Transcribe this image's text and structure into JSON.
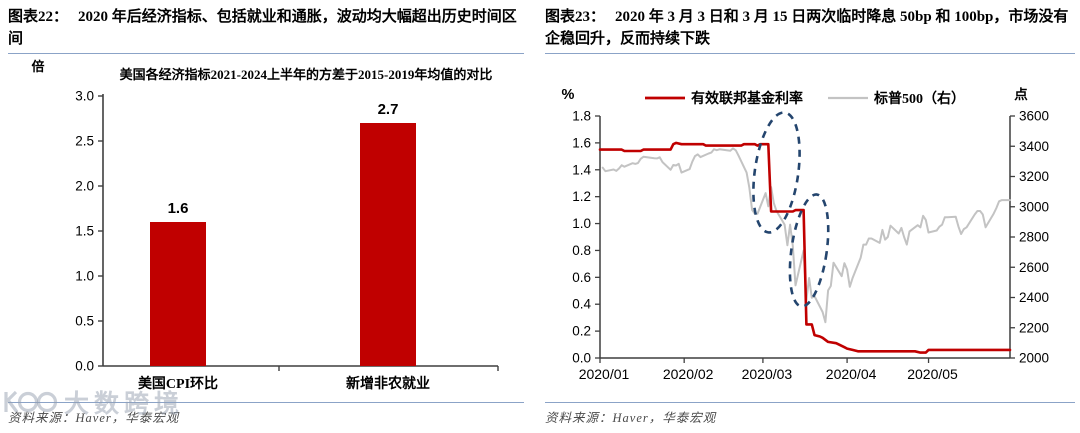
{
  "page": {
    "background": "#ffffff",
    "accent_red": "#c00000",
    "gray_line": "#c3c3c3",
    "ellipse_navy": "#24456e",
    "divider_blue": "#8ba3c7"
  },
  "watermark": {
    "logo": "double-circle-logo",
    "text": "大数跨境"
  },
  "left_panel": {
    "title_label": "图表22：",
    "title": "2020 年后经济指标、包括就业和通胀，波动均大幅超出历史时间区间",
    "source": "资料来源：Haver，华泰宏观"
  },
  "right_panel": {
    "title_label": "图表23：",
    "title": "2020 年 3 月 3 日和 3 月 15 日两次临时降息 50bp 和 100bp，市场没有企稳回升，反而持续下跌",
    "source": "资料来源：Haver，华泰宏观"
  },
  "chart_data": [
    {
      "type": "bar",
      "title": "美国各经济指标2021-2024上半年的方差于2015-2019年均值的对比",
      "unit": "倍",
      "categories": [
        "美国CPI环比",
        "新增非农就业"
      ],
      "values": [
        1.6,
        2.7
      ],
      "bar_labels": [
        "1.6",
        "2.7"
      ],
      "ylim": [
        0,
        3.0
      ],
      "yticks": [
        0.0,
        0.5,
        1.0,
        1.5,
        2.0,
        2.5,
        3.0
      ],
      "bar_color": "#c00000",
      "grid": false
    },
    {
      "type": "line",
      "left_axis": {
        "unit": "%",
        "ylim": [
          0,
          1.8
        ],
        "ticks": [
          0.0,
          0.2,
          0.4,
          0.6,
          0.8,
          1.0,
          1.2,
          1.4,
          1.6,
          1.8
        ]
      },
      "right_axis": {
        "unit": "点",
        "ylim": [
          2000,
          3600
        ],
        "ticks": [
          2000,
          2200,
          2400,
          2600,
          2800,
          3000,
          3200,
          3400,
          3600
        ]
      },
      "x_range_days": 151,
      "x_ticks": [
        {
          "day": 0,
          "label": "2020/01"
        },
        {
          "day": 31,
          "label": "2020/02"
        },
        {
          "day": 60,
          "label": "2020/03"
        },
        {
          "day": 91,
          "label": "2020/04"
        },
        {
          "day": 121,
          "label": "2020/05"
        }
      ],
      "legend_position": "top",
      "grid": false,
      "series": [
        {
          "name": "有效联邦基金利率",
          "color": "#c00000",
          "axis": "left",
          "points": [
            [
              0,
              1.55
            ],
            [
              8,
              1.55
            ],
            [
              9,
              1.54
            ],
            [
              15,
              1.54
            ],
            [
              16,
              1.55
            ],
            [
              26,
              1.55
            ],
            [
              27,
              1.59
            ],
            [
              28,
              1.6
            ],
            [
              30,
              1.59
            ],
            [
              38,
              1.59
            ],
            [
              39,
              1.58
            ],
            [
              52,
              1.58
            ],
            [
              53,
              1.59
            ],
            [
              57,
              1.59
            ],
            [
              58,
              1.58
            ],
            [
              59,
              1.59
            ],
            [
              62,
              1.59
            ],
            [
              63,
              1.09
            ],
            [
              71,
              1.09
            ],
            [
              72,
              1.1
            ],
            [
              75,
              1.1
            ],
            [
              76,
              0.25
            ],
            [
              78,
              0.25
            ],
            [
              79,
              0.17
            ],
            [
              81,
              0.16
            ],
            [
              82,
              0.15
            ],
            [
              84,
              0.12
            ],
            [
              87,
              0.11
            ],
            [
              90,
              0.08
            ],
            [
              91,
              0.07
            ],
            [
              93,
              0.06
            ],
            [
              95,
              0.05
            ],
            [
              116,
              0.05
            ],
            [
              118,
              0.04
            ],
            [
              120,
              0.04
            ],
            [
              121,
              0.06
            ],
            [
              151,
              0.06
            ]
          ]
        },
        {
          "name": "标普500（右）",
          "color": "#c3c3c3",
          "axis": "right",
          "points": [
            [
              1,
              3258
            ],
            [
              2,
              3235
            ],
            [
              5,
              3246
            ],
            [
              6,
              3237
            ],
            [
              7,
              3253
            ],
            [
              8,
              3275
            ],
            [
              9,
              3265
            ],
            [
              12,
              3288
            ],
            [
              13,
              3283
            ],
            [
              14,
              3289
            ],
            [
              15,
              3317
            ],
            [
              16,
              3330
            ],
            [
              20,
              3321
            ],
            [
              21,
              3320
            ],
            [
              22,
              3327
            ],
            [
              23,
              3295
            ],
            [
              26,
              3244
            ],
            [
              27,
              3276
            ],
            [
              28,
              3273
            ],
            [
              29,
              3284
            ],
            [
              30,
              3226
            ],
            [
              33,
              3249
            ],
            [
              34,
              3298
            ],
            [
              35,
              3335
            ],
            [
              36,
              3346
            ],
            [
              37,
              3328
            ],
            [
              40,
              3352
            ],
            [
              41,
              3358
            ],
            [
              42,
              3380
            ],
            [
              43,
              3374
            ],
            [
              44,
              3380
            ],
            [
              48,
              3370
            ],
            [
              49,
              3386
            ],
            [
              50,
              3373
            ],
            [
              51,
              3338
            ],
            [
              54,
              3226
            ],
            [
              55,
              3128
            ],
            [
              56,
              2979
            ],
            [
              57,
              2954
            ],
            [
              58,
              2954
            ],
            [
              61,
              3090
            ],
            [
              62,
              3003
            ],
            [
              63,
              3130
            ],
            [
              64,
              3024
            ],
            [
              65,
              2972
            ],
            [
              68,
              2882
            ],
            [
              69,
              2746
            ],
            [
              70,
              2882
            ],
            [
              71,
              2741
            ],
            [
              72,
              2480
            ],
            [
              75,
              2711
            ],
            [
              76,
              2386
            ],
            [
              77,
              2529
            ],
            [
              78,
              2398
            ],
            [
              79,
              2409
            ],
            [
              82,
              2304
            ],
            [
              83,
              2237
            ],
            [
              84,
              2447
            ],
            [
              85,
              2476
            ],
            [
              86,
              2630
            ],
            [
              89,
              2541
            ],
            [
              90,
              2627
            ],
            [
              91,
              2585
            ],
            [
              92,
              2471
            ],
            [
              93,
              2527
            ],
            [
              96,
              2664
            ],
            [
              97,
              2750
            ],
            [
              98,
              2750
            ],
            [
              99,
              2790
            ],
            [
              100,
              2790
            ],
            [
              103,
              2761
            ],
            [
              104,
              2847
            ],
            [
              105,
              2783
            ],
            [
              106,
              2800
            ],
            [
              107,
              2875
            ],
            [
              110,
              2823
            ],
            [
              111,
              2860
            ],
            [
              112,
              2800
            ],
            [
              113,
              2750
            ],
            [
              114,
              2837
            ],
            [
              117,
              2878
            ],
            [
              118,
              2864
            ],
            [
              119,
              2940
            ],
            [
              120,
              2913
            ],
            [
              121,
              2830
            ],
            [
              124,
              2843
            ],
            [
              125,
              2868
            ],
            [
              126,
              2881
            ],
            [
              127,
              2930
            ],
            [
              128,
              2930
            ],
            [
              131,
              2934
            ],
            [
              132,
              2870
            ],
            [
              133,
              2820
            ],
            [
              134,
              2852
            ],
            [
              135,
              2864
            ],
            [
              138,
              2949
            ],
            [
              139,
              2972
            ],
            [
              140,
              2972
            ],
            [
              141,
              2949
            ],
            [
              142,
              2864
            ],
            [
              145,
              2955
            ],
            [
              146,
              2992
            ],
            [
              147,
              3036
            ],
            [
              148,
              3044
            ],
            [
              151,
              3044
            ]
          ]
        }
      ],
      "annotations": [
        {
          "shape": "dashed-ellipse",
          "cx_day": 65,
          "cy": 1.38,
          "rx_days": 8,
          "ry": 0.45,
          "rotate": 8,
          "color": "#24456e"
        },
        {
          "shape": "dashed-ellipse",
          "cx_day": 77,
          "cy": 0.8,
          "rx_days": 6.5,
          "ry": 0.42,
          "rotate": 8,
          "color": "#24456e"
        }
      ]
    }
  ]
}
